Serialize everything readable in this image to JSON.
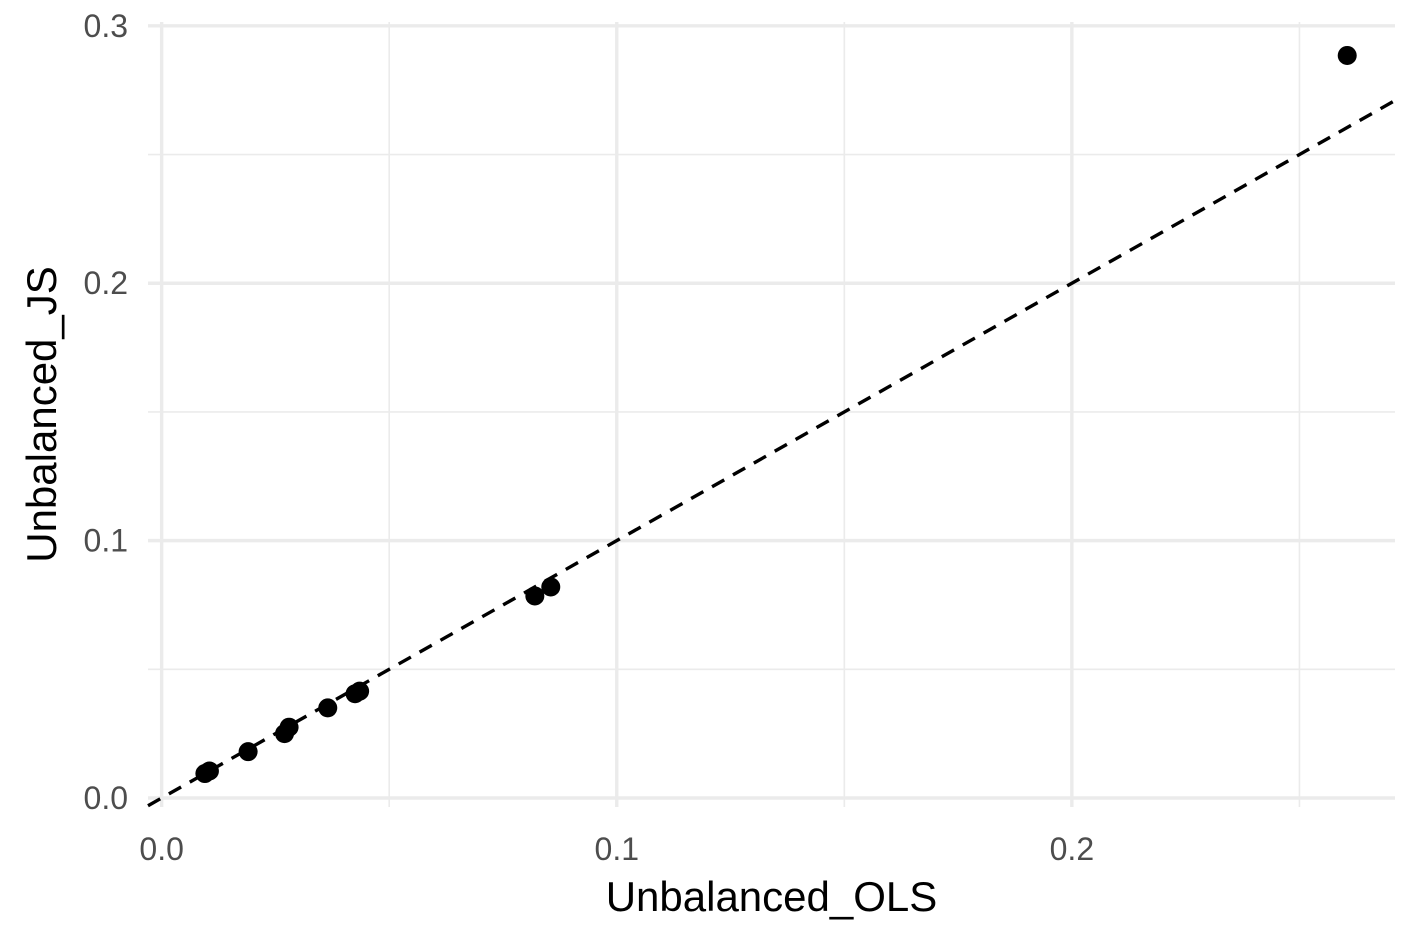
{
  "chart_data": {
    "type": "scatter",
    "title": "",
    "xlabel": "Unbalanced_OLS",
    "ylabel": "Unbalanced_JS",
    "xlim": [
      -0.003,
      0.271
    ],
    "ylim": [
      -0.0035,
      0.3015
    ],
    "x_ticks": [
      0.0,
      0.1,
      0.2
    ],
    "x_tick_labels": [
      "0.0",
      "0.1",
      "0.2"
    ],
    "y_ticks": [
      0.0,
      0.1,
      0.2,
      0.3
    ],
    "y_tick_labels": [
      "0.0",
      "0.1",
      "0.2",
      "0.3"
    ],
    "x_minor_ticks": [
      0.05,
      0.15,
      0.25
    ],
    "y_minor_ticks": [
      0.05,
      0.15,
      0.25
    ],
    "grid": true,
    "legend": "none",
    "reference_line": {
      "type": "y=x",
      "style": "dashed",
      "color": "#000000"
    },
    "point_color": "#000000",
    "grid_color": "#ebebeb",
    "series": [
      {
        "x": [
          0.0095,
          0.0105,
          0.019,
          0.027,
          0.028,
          0.0365,
          0.0425,
          0.0435,
          0.082,
          0.0855,
          0.2605
        ],
        "y": [
          0.0095,
          0.0105,
          0.018,
          0.025,
          0.0275,
          0.035,
          0.0405,
          0.0415,
          0.0785,
          0.082,
          0.2885
        ]
      }
    ]
  }
}
